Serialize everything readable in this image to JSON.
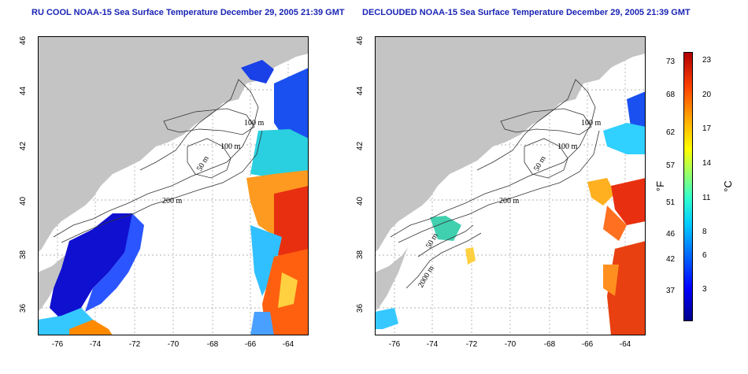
{
  "left_title": "RU COOL NOAA-15 Sea Surface Temperature December 29, 2005 21:39 GMT",
  "right_title": "DECLOUDED NOAA-15 Sea Surface Temperature December 29, 2005 21:39 GMT",
  "lat_ticks": [
    "46",
    "44",
    "42",
    "40",
    "38",
    "36"
  ],
  "lon_ticks": [
    "-76",
    "-74",
    "-72",
    "-70",
    "-68",
    "-66",
    "-64"
  ],
  "left_contours": [
    "100 m",
    "100 m",
    "50 m",
    "200 m"
  ],
  "right_contours": [
    "100 m",
    "100 m",
    "50 m",
    "200 m",
    "50 m",
    "2000 m"
  ],
  "colorbar": {
    "f_ticks": [
      "73",
      "68",
      "62",
      "57",
      "51",
      "46",
      "42",
      "37"
    ],
    "c_ticks": [
      "23",
      "20",
      "17",
      "14",
      "11",
      "8",
      "6",
      "3"
    ],
    "f_unit": "°F",
    "c_unit": "°C",
    "min_c": 0,
    "max_c": 24
  },
  "colors": {
    "land": "#c4c4c4",
    "title": "#1a24b4",
    "cold": "#0000cc",
    "warm": "#e03000"
  }
}
